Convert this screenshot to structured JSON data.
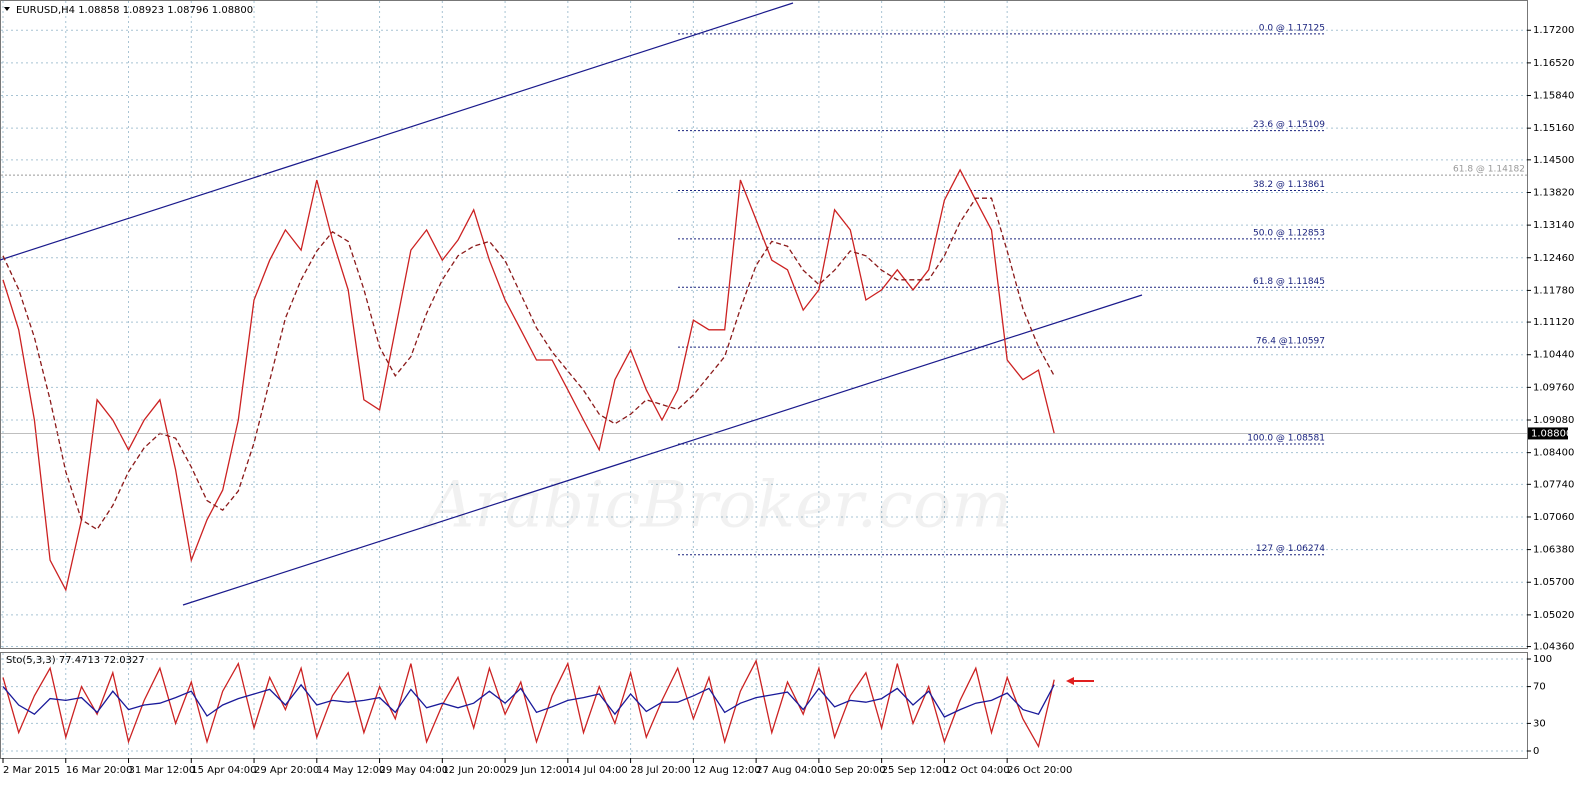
{
  "chart_data": [
    {
      "type": "line",
      "header": "EURUSD,H4  1.08858 1.08923 1.08796 1.08800",
      "watermark": "ArabicBroker.com",
      "ylim": [
        1.0433,
        1.1783
      ],
      "yticks": [
        {
          "value": 1.172,
          "label": "1.17200"
        },
        {
          "value": 1.1652,
          "label": "1.16520"
        },
        {
          "value": 1.1584,
          "label": "1.15840"
        },
        {
          "value": 1.1516,
          "label": "1.15160"
        },
        {
          "value": 1.145,
          "label": "1.14500"
        },
        {
          "value": 1.1382,
          "label": "1.13820"
        },
        {
          "value": 1.1314,
          "label": "1.13140"
        },
        {
          "value": 1.1246,
          "label": "1.12460"
        },
        {
          "value": 1.1178,
          "label": "1.11780"
        },
        {
          "value": 1.1112,
          "label": "1.11120"
        },
        {
          "value": 1.1044,
          "label": "1.10440"
        },
        {
          "value": 1.0976,
          "label": "1.09760"
        },
        {
          "value": 1.0908,
          "label": "1.09080"
        },
        {
          "value": 1.084,
          "label": "1.08400"
        },
        {
          "value": 1.0774,
          "label": "1.07740"
        },
        {
          "value": 1.0706,
          "label": "1.07060"
        },
        {
          "value": 1.0638,
          "label": "1.06380"
        },
        {
          "value": 1.057,
          "label": "1.05700"
        },
        {
          "value": 1.0502,
          "label": "1.05020"
        },
        {
          "value": 1.0436,
          "label": "1.04360"
        }
      ],
      "grid": true,
      "series": [
        {
          "name": "EURUSD",
          "color": "#cc2222",
          "dash": false,
          "values": [
            1.12,
            1.1096,
            1.0908,
            1.0616,
            1.0554,
            1.07,
            1.095,
            1.0908,
            1.0846,
            1.0908,
            1.095,
            1.0804,
            1.0616,
            1.07,
            1.0762,
            1.0908,
            1.1158,
            1.1241,
            1.1304,
            1.1262,
            1.1408,
            1.1283,
            1.1179,
            1.095,
            1.0929,
            1.1096,
            1.1262,
            1.1304,
            1.1241,
            1.1283,
            1.1346,
            1.1241,
            1.1158,
            1.1096,
            1.1033,
            1.1033,
            1.0971,
            1.0908,
            1.0846,
            1.0992,
            1.1054,
            1.0971,
            1.0908,
            1.0971,
            1.1116,
            1.1096,
            1.1096,
            1.1408,
            1.1325,
            1.1241,
            1.1221,
            1.1137,
            1.1179,
            1.1346,
            1.1304,
            1.1158,
            1.1179,
            1.1221,
            1.1179,
            1.1221,
            1.1366,
            1.1429,
            1.1366,
            1.1304,
            1.1033,
            1.0992,
            1.1012,
            1.088
          ]
        },
        {
          "name": "MA",
          "color": "#8b1a1a",
          "dash": true,
          "values": [
            1.125,
            1.118,
            1.108,
            1.095,
            1.08,
            1.07,
            1.068,
            1.073,
            1.08,
            1.085,
            1.088,
            1.087,
            1.081,
            1.074,
            1.072,
            1.076,
            1.086,
            1.099,
            1.112,
            1.12,
            1.126,
            1.13,
            1.128,
            1.118,
            1.106,
            1.1,
            1.104,
            1.113,
            1.12,
            1.125,
            1.127,
            1.128,
            1.124,
            1.117,
            1.11,
            1.105,
            1.101,
            1.097,
            1.092,
            1.09,
            1.092,
            1.095,
            1.094,
            1.093,
            1.096,
            1.1,
            1.104,
            1.114,
            1.123,
            1.128,
            1.127,
            1.122,
            1.119,
            1.122,
            1.126,
            1.125,
            1.122,
            1.12,
            1.12,
            1.12,
            1.125,
            1.132,
            1.137,
            1.137,
            1.126,
            1.114,
            1.106,
            1.1
          ]
        }
      ],
      "last_price": {
        "value": 1.088,
        "label": "1.08800"
      },
      "fib_levels": [
        {
          "label": "0.0 @ 1.17125",
          "value": 1.17125
        },
        {
          "label": "23.6 @ 1.15109",
          "value": 1.15109
        },
        {
          "label": "38.2 @ 1.13861",
          "value": 1.13861
        },
        {
          "label": "50.0 @ 1.12853",
          "value": 1.12853
        },
        {
          "label": "61.8 @ 1.11845",
          "value": 1.11845
        },
        {
          "label": "76.4 @1.10597",
          "value": 1.10597
        },
        {
          "label": "100.0 @ 1.08581",
          "value": 1.08581
        },
        {
          "label": "127 @ 1.06274",
          "value": 1.06274
        }
      ],
      "other_level": {
        "label": "61.8 @ 1.14182",
        "value": 1.14182
      }
    },
    {
      "type": "line",
      "header": "Sto(5,3,3) 77.4713 72.0327",
      "ylim": [
        -7.6,
        107.6
      ],
      "yticks": [
        0,
        30,
        70,
        100
      ],
      "grid": true,
      "categories": [
        "2 Mar 2015",
        null,
        null,
        null,
        "16 Mar 20:00",
        null,
        null,
        null,
        "31 Mar 12:00",
        null,
        null,
        null,
        "15 Apr 04:00",
        null,
        null,
        null,
        "29 Apr 20:00",
        null,
        null,
        null,
        "14 May 12:00",
        null,
        null,
        null,
        "29 May 04:00",
        null,
        null,
        null,
        "12 Jun 20:00",
        null,
        null,
        null,
        "29 Jun 12:00",
        null,
        null,
        null,
        "14 Jul 04:00",
        null,
        null,
        null,
        "28 Jul 20:00",
        null,
        null,
        null,
        "12 Aug 12:00",
        null,
        null,
        null,
        "27 Aug 04:00",
        null,
        null,
        null,
        "10 Sep 20:00",
        null,
        null,
        null,
        "25 Sep 12:00",
        null,
        null,
        null,
        "12 Oct 04:00",
        null,
        null,
        null,
        "26 Oct 20:00",
        null,
        null,
        null
      ],
      "series": [
        {
          "name": "Main",
          "color": "#cc2222",
          "dash": false,
          "values": [
            80,
            20,
            60,
            90,
            15,
            70,
            40,
            85,
            10,
            55,
            90,
            30,
            75,
            10,
            65,
            95,
            25,
            80,
            45,
            90,
            15,
            60,
            85,
            20,
            70,
            35,
            95,
            10,
            50,
            80,
            25,
            90,
            40,
            75,
            10,
            60,
            95,
            20,
            70,
            30,
            85,
            15,
            55,
            90,
            35,
            80,
            10,
            65,
            98,
            20,
            75,
            40,
            90,
            15,
            60,
            85,
            25,
            95,
            30,
            70,
            10,
            55,
            90,
            20,
            80,
            35,
            5,
            77.4713
          ]
        },
        {
          "name": "Signal",
          "color": "#1a1a9a",
          "dash": false,
          "values": [
            70,
            50,
            40,
            57,
            55,
            58,
            42,
            65,
            45,
            50,
            52,
            58,
            65,
            38,
            50,
            57,
            62,
            67,
            50,
            72,
            50,
            55,
            53,
            55,
            58,
            42,
            67,
            47,
            52,
            47,
            52,
            65,
            52,
            68,
            42,
            48,
            55,
            58,
            62,
            40,
            62,
            43,
            53,
            53,
            60,
            68,
            42,
            52,
            58,
            61,
            64,
            45,
            68,
            48,
            55,
            53,
            57,
            68,
            50,
            65,
            37,
            45,
            52,
            55,
            63,
            45,
            40,
            72.0327
          ]
        }
      ]
    }
  ]
}
